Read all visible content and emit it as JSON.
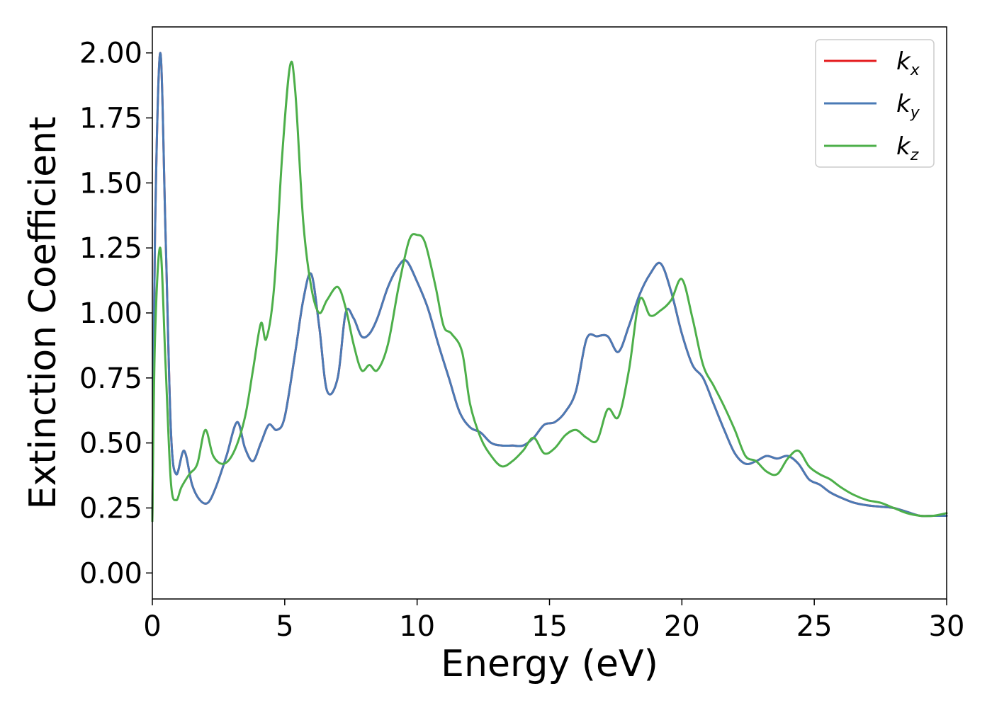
{
  "chart_data": {
    "type": "line",
    "xlabel": "Energy (eV)",
    "ylabel": "Extinction Coefficient",
    "xlim": [
      0,
      30
    ],
    "ylim": [
      -0.1,
      2.1
    ],
    "xticks": [
      0,
      5,
      10,
      15,
      20,
      25,
      30
    ],
    "xtick_labels": [
      "0",
      "5",
      "10",
      "15",
      "20",
      "25",
      "30"
    ],
    "yticks": [
      0.0,
      0.25,
      0.5,
      0.75,
      1.0,
      1.25,
      1.5,
      1.75,
      2.0
    ],
    "ytick_labels": [
      "0.00",
      "0.25",
      "0.50",
      "0.75",
      "1.00",
      "1.25",
      "1.50",
      "1.75",
      "2.00"
    ],
    "grid": false,
    "legend_position": "top-right",
    "series": [
      {
        "name": "k",
        "subscript": "x",
        "color": "#e41a1c",
        "x": [
          0.0,
          0.1,
          0.3,
          0.5,
          0.7,
          0.9,
          1.2,
          1.5,
          1.8,
          2.1,
          2.4,
          2.8,
          3.2,
          3.5,
          3.8,
          4.1,
          4.4,
          4.7,
          5.0,
          5.4,
          5.7,
          6.0,
          6.3,
          6.6,
          7.0,
          7.3,
          7.6,
          7.9,
          8.2,
          8.5,
          8.9,
          9.3,
          9.6,
          10.0,
          10.4,
          10.8,
          11.2,
          11.6,
          12.0,
          12.4,
          12.8,
          13.2,
          13.6,
          14.0,
          14.4,
          14.8,
          15.2,
          15.6,
          16.0,
          16.4,
          16.8,
          17.2,
          17.6,
          18.0,
          18.4,
          18.8,
          19.2,
          19.6,
          20.0,
          20.4,
          20.8,
          21.2,
          21.6,
          22.0,
          22.4,
          22.8,
          23.2,
          23.6,
          24.0,
          24.4,
          24.8,
          25.2,
          25.6,
          26.0,
          26.5,
          27.0,
          27.5,
          28.0,
          28.5,
          29.0,
          29.5,
          30.0
        ],
        "y": [
          0.2,
          1.3,
          2.0,
          1.3,
          0.55,
          0.38,
          0.47,
          0.34,
          0.28,
          0.27,
          0.33,
          0.45,
          0.58,
          0.48,
          0.43,
          0.5,
          0.57,
          0.55,
          0.6,
          0.85,
          1.05,
          1.15,
          0.95,
          0.7,
          0.75,
          1.0,
          0.98,
          0.91,
          0.92,
          0.98,
          1.1,
          1.18,
          1.2,
          1.12,
          1.02,
          0.88,
          0.75,
          0.62,
          0.56,
          0.54,
          0.5,
          0.49,
          0.49,
          0.49,
          0.52,
          0.57,
          0.58,
          0.62,
          0.7,
          0.9,
          0.91,
          0.91,
          0.85,
          0.95,
          1.07,
          1.15,
          1.19,
          1.08,
          0.92,
          0.8,
          0.75,
          0.65,
          0.55,
          0.46,
          0.42,
          0.43,
          0.45,
          0.44,
          0.45,
          0.42,
          0.36,
          0.34,
          0.31,
          0.29,
          0.27,
          0.26,
          0.255,
          0.25,
          0.235,
          0.22,
          0.22,
          0.22
        ]
      },
      {
        "name": "k",
        "subscript": "y",
        "color": "#4a7ab5",
        "x": [
          0.0,
          0.1,
          0.3,
          0.5,
          0.7,
          0.9,
          1.2,
          1.5,
          1.8,
          2.1,
          2.4,
          2.8,
          3.2,
          3.5,
          3.8,
          4.1,
          4.4,
          4.7,
          5.0,
          5.4,
          5.7,
          6.0,
          6.3,
          6.6,
          7.0,
          7.3,
          7.6,
          7.9,
          8.2,
          8.5,
          8.9,
          9.3,
          9.6,
          10.0,
          10.4,
          10.8,
          11.2,
          11.6,
          12.0,
          12.4,
          12.8,
          13.2,
          13.6,
          14.0,
          14.4,
          14.8,
          15.2,
          15.6,
          16.0,
          16.4,
          16.8,
          17.2,
          17.6,
          18.0,
          18.4,
          18.8,
          19.2,
          19.6,
          20.0,
          20.4,
          20.8,
          21.2,
          21.6,
          22.0,
          22.4,
          22.8,
          23.2,
          23.6,
          24.0,
          24.4,
          24.8,
          25.2,
          25.6,
          26.0,
          26.5,
          27.0,
          27.5,
          28.0,
          28.5,
          29.0,
          29.5,
          30.0
        ],
        "y": [
          0.2,
          1.3,
          2.0,
          1.3,
          0.55,
          0.38,
          0.47,
          0.34,
          0.28,
          0.27,
          0.33,
          0.45,
          0.58,
          0.48,
          0.43,
          0.5,
          0.57,
          0.55,
          0.6,
          0.85,
          1.05,
          1.15,
          0.95,
          0.7,
          0.75,
          1.0,
          0.98,
          0.91,
          0.92,
          0.98,
          1.1,
          1.18,
          1.2,
          1.12,
          1.02,
          0.88,
          0.75,
          0.62,
          0.56,
          0.54,
          0.5,
          0.49,
          0.49,
          0.49,
          0.52,
          0.57,
          0.58,
          0.62,
          0.7,
          0.9,
          0.91,
          0.91,
          0.85,
          0.95,
          1.07,
          1.15,
          1.19,
          1.08,
          0.92,
          0.8,
          0.75,
          0.65,
          0.55,
          0.46,
          0.42,
          0.43,
          0.45,
          0.44,
          0.45,
          0.42,
          0.36,
          0.34,
          0.31,
          0.29,
          0.27,
          0.26,
          0.255,
          0.25,
          0.235,
          0.22,
          0.22,
          0.22
        ]
      },
      {
        "name": "k",
        "subscript": "z",
        "color": "#4daf4a",
        "x": [
          0.0,
          0.1,
          0.3,
          0.5,
          0.7,
          0.9,
          1.1,
          1.4,
          1.7,
          2.0,
          2.3,
          2.7,
          3.1,
          3.5,
          3.8,
          4.1,
          4.3,
          4.6,
          4.9,
          5.2,
          5.4,
          5.7,
          6.0,
          6.3,
          6.6,
          7.0,
          7.3,
          7.6,
          7.9,
          8.2,
          8.5,
          8.9,
          9.3,
          9.7,
          10.0,
          10.3,
          10.7,
          11.0,
          11.3,
          11.7,
          12.0,
          12.4,
          12.8,
          13.2,
          13.6,
          14.0,
          14.4,
          14.8,
          15.2,
          15.6,
          16.0,
          16.4,
          16.8,
          17.2,
          17.6,
          18.0,
          18.4,
          18.8,
          19.2,
          19.6,
          20.0,
          20.4,
          20.8,
          21.2,
          21.6,
          22.0,
          22.4,
          22.8,
          23.2,
          23.6,
          24.0,
          24.4,
          24.8,
          25.2,
          25.6,
          26.0,
          26.5,
          27.0,
          27.5,
          28.0,
          28.5,
          29.0,
          29.5,
          30.0
        ],
        "y": [
          0.2,
          0.9,
          1.25,
          0.8,
          0.35,
          0.28,
          0.33,
          0.38,
          0.42,
          0.55,
          0.45,
          0.42,
          0.47,
          0.6,
          0.78,
          0.96,
          0.9,
          1.1,
          1.6,
          1.95,
          1.85,
          1.35,
          1.1,
          1.0,
          1.05,
          1.1,
          1.02,
          0.88,
          0.78,
          0.8,
          0.78,
          0.88,
          1.1,
          1.28,
          1.3,
          1.27,
          1.1,
          0.95,
          0.92,
          0.85,
          0.65,
          0.52,
          0.45,
          0.41,
          0.43,
          0.47,
          0.52,
          0.46,
          0.48,
          0.53,
          0.55,
          0.52,
          0.51,
          0.63,
          0.6,
          0.78,
          1.05,
          0.99,
          1.01,
          1.05,
          1.13,
          0.98,
          0.8,
          0.72,
          0.64,
          0.55,
          0.45,
          0.43,
          0.39,
          0.38,
          0.44,
          0.47,
          0.41,
          0.38,
          0.36,
          0.33,
          0.3,
          0.28,
          0.27,
          0.25,
          0.23,
          0.22,
          0.22,
          0.23
        ]
      }
    ]
  }
}
